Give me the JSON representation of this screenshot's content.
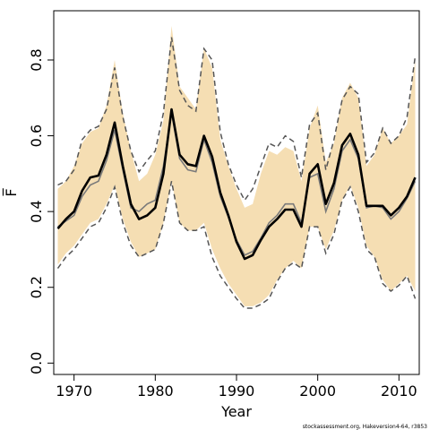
{
  "chart_data": {
    "type": "line",
    "xlabel": "Year",
    "ylabel": "F̅",
    "xlim": [
      1967.5,
      2012.5
    ],
    "ylim": [
      -0.03,
      0.93
    ],
    "x_ticks": [
      1970,
      1980,
      1990,
      2000,
      2010
    ],
    "x_tick_labels": [
      "1970",
      "1980",
      "1990",
      "2000",
      "2010"
    ],
    "y_ticks": [
      0.0,
      0.2,
      0.4,
      0.6,
      0.8
    ],
    "y_tick_labels": [
      "0.0",
      "0.2",
      "0.4",
      "0.6",
      "0.8"
    ],
    "grid": false,
    "colors": {
      "band": "#f5deb3",
      "estimate": "#000000",
      "secondary": "#7a7a7a",
      "bound": "#555555"
    },
    "x": [
      1968,
      1969,
      1970,
      1971,
      1972,
      1973,
      1974,
      1975,
      1976,
      1977,
      1978,
      1979,
      1980,
      1981,
      1982,
      1983,
      1984,
      1985,
      1986,
      1987,
      1988,
      1989,
      1990,
      1991,
      1992,
      1993,
      1994,
      1995,
      1996,
      1997,
      1998,
      1999,
      2000,
      2001,
      2002,
      2003,
      2004,
      2005,
      2006,
      2007,
      2008,
      2009,
      2010,
      2011,
      2012
    ],
    "series": [
      {
        "role": "estimate",
        "values": [
          0.355,
          0.38,
          0.4,
          0.455,
          0.49,
          0.495,
          0.55,
          0.635,
          0.52,
          0.42,
          0.38,
          0.39,
          0.41,
          0.5,
          0.67,
          0.55,
          0.525,
          0.52,
          0.6,
          0.545,
          0.45,
          0.39,
          0.32,
          0.275,
          0.285,
          0.325,
          0.36,
          0.38,
          0.405,
          0.405,
          0.36,
          0.5,
          0.525,
          0.42,
          0.475,
          0.575,
          0.605,
          0.55,
          0.415,
          0.415,
          0.415,
          0.39,
          0.41,
          0.44,
          0.49
        ]
      },
      {
        "role": "secondary",
        "values": [
          0.36,
          0.375,
          0.39,
          0.44,
          0.47,
          0.48,
          0.535,
          0.615,
          0.51,
          0.41,
          0.4,
          0.42,
          0.43,
          0.52,
          0.66,
          0.54,
          0.51,
          0.505,
          0.59,
          0.53,
          0.44,
          0.385,
          0.325,
          0.285,
          0.295,
          0.33,
          0.37,
          0.39,
          0.42,
          0.42,
          0.37,
          0.49,
          0.5,
          0.4,
          0.46,
          0.56,
          0.59,
          0.54,
          0.41,
          0.415,
          0.41,
          0.38,
          0.4,
          0.435,
          0.48
        ]
      },
      {
        "role": "band",
        "upper": [
          0.46,
          0.48,
          0.52,
          0.58,
          0.61,
          0.62,
          0.68,
          0.8,
          0.66,
          0.56,
          0.48,
          0.5,
          0.55,
          0.64,
          0.89,
          0.73,
          0.7,
          0.67,
          0.83,
          0.78,
          0.59,
          0.52,
          0.46,
          0.41,
          0.42,
          0.5,
          0.56,
          0.55,
          0.57,
          0.56,
          0.48,
          0.62,
          0.68,
          0.53,
          0.58,
          0.7,
          0.74,
          0.7,
          0.52,
          0.55,
          0.62,
          0.58,
          0.6,
          0.63,
          0.8
        ],
        "lower": [
          0.26,
          0.29,
          0.31,
          0.34,
          0.37,
          0.38,
          0.42,
          0.47,
          0.38,
          0.32,
          0.28,
          0.29,
          0.3,
          0.37,
          0.48,
          0.37,
          0.35,
          0.35,
          0.37,
          0.3,
          0.25,
          0.21,
          0.18,
          0.15,
          0.15,
          0.16,
          0.18,
          0.22,
          0.25,
          0.27,
          0.25,
          0.36,
          0.36,
          0.3,
          0.35,
          0.43,
          0.47,
          0.41,
          0.31,
          0.28,
          0.22,
          0.19,
          0.21,
          0.23,
          0.19
        ]
      },
      {
        "role": "bound",
        "upper": [
          0.47,
          0.48,
          0.51,
          0.59,
          0.615,
          0.625,
          0.67,
          0.78,
          0.65,
          0.56,
          0.505,
          0.535,
          0.56,
          0.66,
          0.86,
          0.72,
          0.68,
          0.665,
          0.83,
          0.8,
          0.61,
          0.525,
          0.47,
          0.43,
          0.46,
          0.52,
          0.58,
          0.57,
          0.6,
          0.585,
          0.49,
          0.63,
          0.66,
          0.51,
          0.59,
          0.695,
          0.73,
          0.71,
          0.53,
          0.555,
          0.62,
          0.58,
          0.6,
          0.65,
          0.81
        ],
        "lower": [
          0.25,
          0.28,
          0.3,
          0.33,
          0.36,
          0.37,
          0.41,
          0.465,
          0.37,
          0.31,
          0.28,
          0.29,
          0.3,
          0.37,
          0.48,
          0.37,
          0.35,
          0.35,
          0.36,
          0.28,
          0.23,
          0.2,
          0.17,
          0.145,
          0.145,
          0.155,
          0.17,
          0.215,
          0.25,
          0.265,
          0.25,
          0.36,
          0.36,
          0.29,
          0.34,
          0.43,
          0.465,
          0.4,
          0.3,
          0.28,
          0.21,
          0.19,
          0.205,
          0.23,
          0.17
        ]
      }
    ]
  },
  "footnote": "stockassessment.org, Hakeversion4-64, r3853"
}
